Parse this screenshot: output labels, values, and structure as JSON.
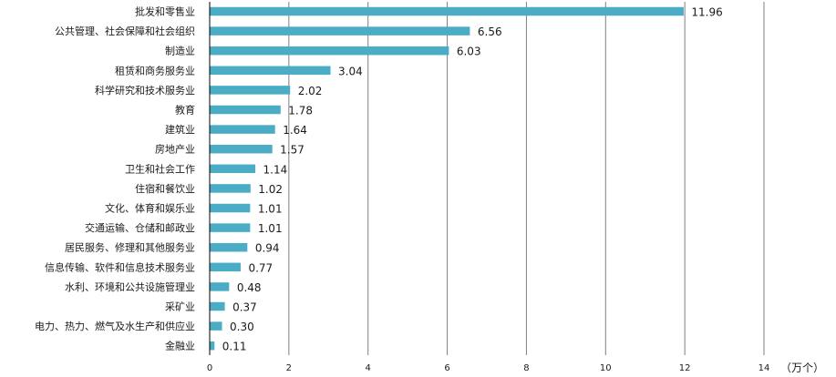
{
  "chart_data": {
    "type": "bar",
    "orientation": "horizontal",
    "categories": [
      "批发和零售业",
      "公共管理、社会保障和社会组织",
      "制造业",
      "租赁和商务服务业",
      "科学研究和技术服务业",
      "教育",
      "建筑业",
      "房地产业",
      "卫生和社会工作",
      "住宿和餐饮业",
      "文化、体育和娱乐业",
      "交通运输、仓储和邮政业",
      "居民服务、修理和其他服务业",
      "信息传输、软件和信息技术服务业",
      "水利、环境和公共设施管理业",
      "采矿业",
      "电力、热力、燃气及水生产和供应业",
      "金融业"
    ],
    "values": [
      11.96,
      6.56,
      6.03,
      3.04,
      2.02,
      1.78,
      1.64,
      1.57,
      1.14,
      1.02,
      1.01,
      1.01,
      0.94,
      0.77,
      0.48,
      0.37,
      0.3,
      0.11
    ],
    "value_labels": [
      "11.96",
      "6.56",
      "6.03",
      "3.04",
      "2.02",
      "1.78",
      "1.64",
      "1.57",
      "1.14",
      "1.02",
      "1.01",
      "1.01",
      "0.94",
      "0.77",
      "0.48",
      "0.37",
      "0.30",
      "0.11"
    ],
    "xlim": [
      0,
      14
    ],
    "xticks": [
      "0",
      "2",
      "4",
      "6",
      "8",
      "10",
      "12",
      "14"
    ],
    "xlabel": "（万个）",
    "title": "",
    "ylabel": "",
    "grid": "vertical",
    "bar_color": "#4bacc6"
  }
}
